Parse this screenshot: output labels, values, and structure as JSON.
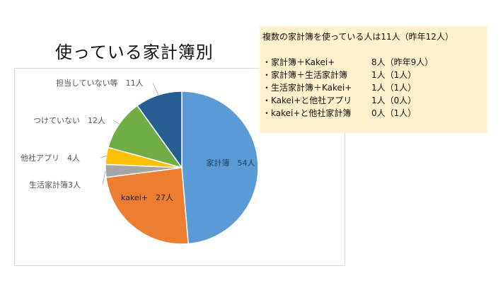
{
  "title": "使っている家計簿別",
  "note": {
    "title": "複数の家計簿を使っている人は11人（昨年12人）",
    "rows": [
      {
        "label": "・家計簿＋Kakei+",
        "value": "8人（昨年9人）"
      },
      {
        "label": "・家計簿＋生活家計簿",
        "value": "1人（1人）"
      },
      {
        "label": "・生活家計簿＋Kakei+",
        "value": "1人（1人）"
      },
      {
        "label": "・Kakei+と他社アプリ",
        "value": "1人（0人）"
      },
      {
        "label": "・kakei+と他社家計簿",
        "value": "0人（1人）"
      }
    ]
  },
  "chart_data": {
    "type": "pie",
    "unit": "人",
    "slices": [
      {
        "name": "家計簿",
        "value": 54,
        "label": "家計簿　54人",
        "color": "#5b9bd5"
      },
      {
        "name": "kakei+",
        "value": 27,
        "label": "kakei+　27人",
        "color": "#ed7d31"
      },
      {
        "name": "生活家計簿",
        "value": 3,
        "label": "生活家計簿3人",
        "color": "#a5a5a5"
      },
      {
        "name": "他社アプリ",
        "value": 4,
        "label": "他社アプリ　4人",
        "color": "#ffc000"
      },
      {
        "name": "つけていない",
        "value": 12,
        "label": "つけていない　12人",
        "color": "#70ad47"
      },
      {
        "name": "担当していない等",
        "value": 11,
        "label": "担当していない等　11人",
        "color": "#255e91"
      }
    ]
  }
}
